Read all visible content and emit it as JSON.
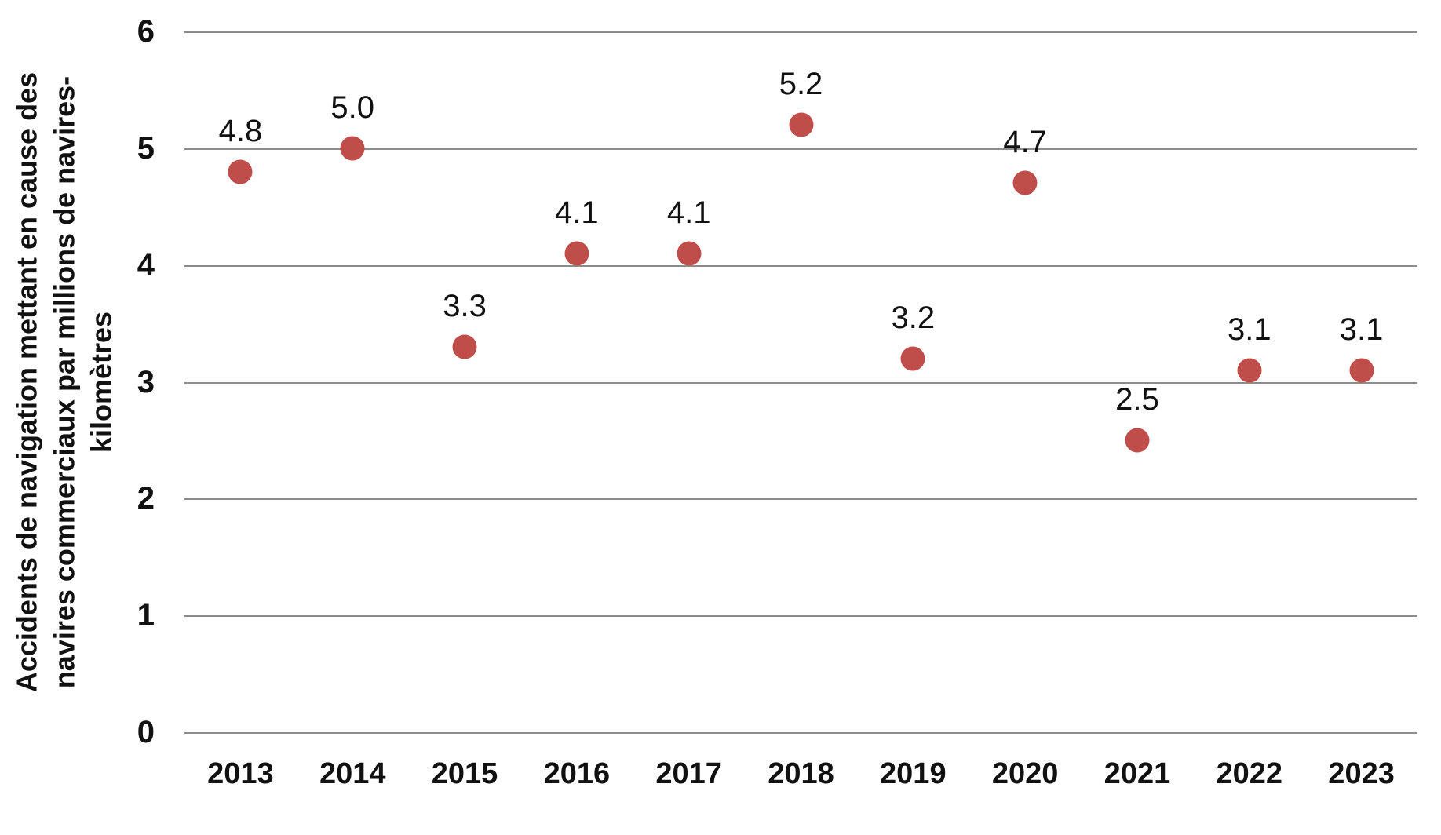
{
  "chart_data": {
    "type": "scatter",
    "title": "",
    "xlabel": "",
    "ylabel": "Accidents de navigation mettant en cause des\nnavires commerciaux par millions de navires-\nkilomètres",
    "categories": [
      "2013",
      "2014",
      "2015",
      "2016",
      "2017",
      "2018",
      "2019",
      "2020",
      "2021",
      "2022",
      "2023"
    ],
    "values": [
      4.8,
      5.0,
      3.3,
      4.1,
      4.1,
      5.2,
      3.2,
      4.7,
      2.5,
      3.1,
      3.1
    ],
    "point_labels": [
      "4.8",
      "5.0",
      "3.3",
      "4.1",
      "4.1",
      "5.2",
      "3.2",
      "4.7",
      "2.5",
      "3.1",
      "3.1"
    ],
    "ylim": [
      0,
      6
    ],
    "yticks": [
      0,
      1,
      2,
      3,
      4,
      5,
      6
    ],
    "grid": "horizontal",
    "legend": "none",
    "point_color": "#BF4E4B",
    "gridline_color": "#8C8C8C",
    "text_color": "#111111"
  }
}
